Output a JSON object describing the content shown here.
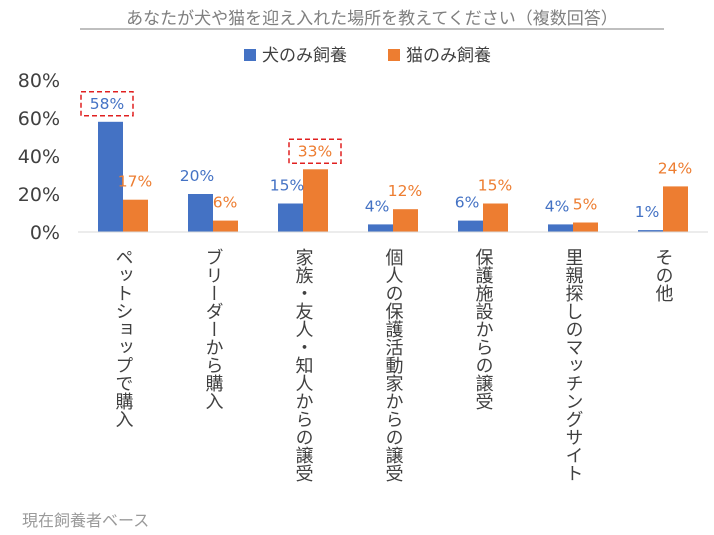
{
  "chart_data": {
    "type": "bar",
    "title": "あなたが犬や猫を迎え入れた場所を教えてください（複数回答）",
    "categories": [
      "ペットショップで購入",
      "ブリーダーから購入",
      "家族・友人・知人からの譲受",
      "個人の保護活動家からの譲受",
      "保護施設からの譲受",
      "里親探しのマッチングサイト",
      "その他"
    ],
    "series": [
      {
        "name": "犬のみ飼養",
        "color": "#4472c4",
        "values": [
          58,
          20,
          15,
          4,
          6,
          4,
          1
        ],
        "labels": [
          "58%",
          "20%",
          "15%",
          "4%",
          "6%",
          "4%",
          "1%"
        ]
      },
      {
        "name": "猫のみ飼養",
        "color": "#ed7d31",
        "values": [
          17,
          6,
          33,
          12,
          15,
          5,
          24
        ],
        "labels": [
          "17%",
          "6%",
          "33%",
          "12%",
          "15%",
          "5%",
          "24%"
        ]
      }
    ],
    "ylim": [
      0,
      80
    ],
    "yticks": [
      "0%",
      "20%",
      "40%",
      "60%",
      "80%"
    ],
    "grid": false,
    "legend": "top-center",
    "highlighted": [
      {
        "series": 0,
        "category": 0
      },
      {
        "series": 1,
        "category": 2
      }
    ],
    "highlight_color": "#e02020",
    "footnote": "現在飼養者ベース"
  }
}
